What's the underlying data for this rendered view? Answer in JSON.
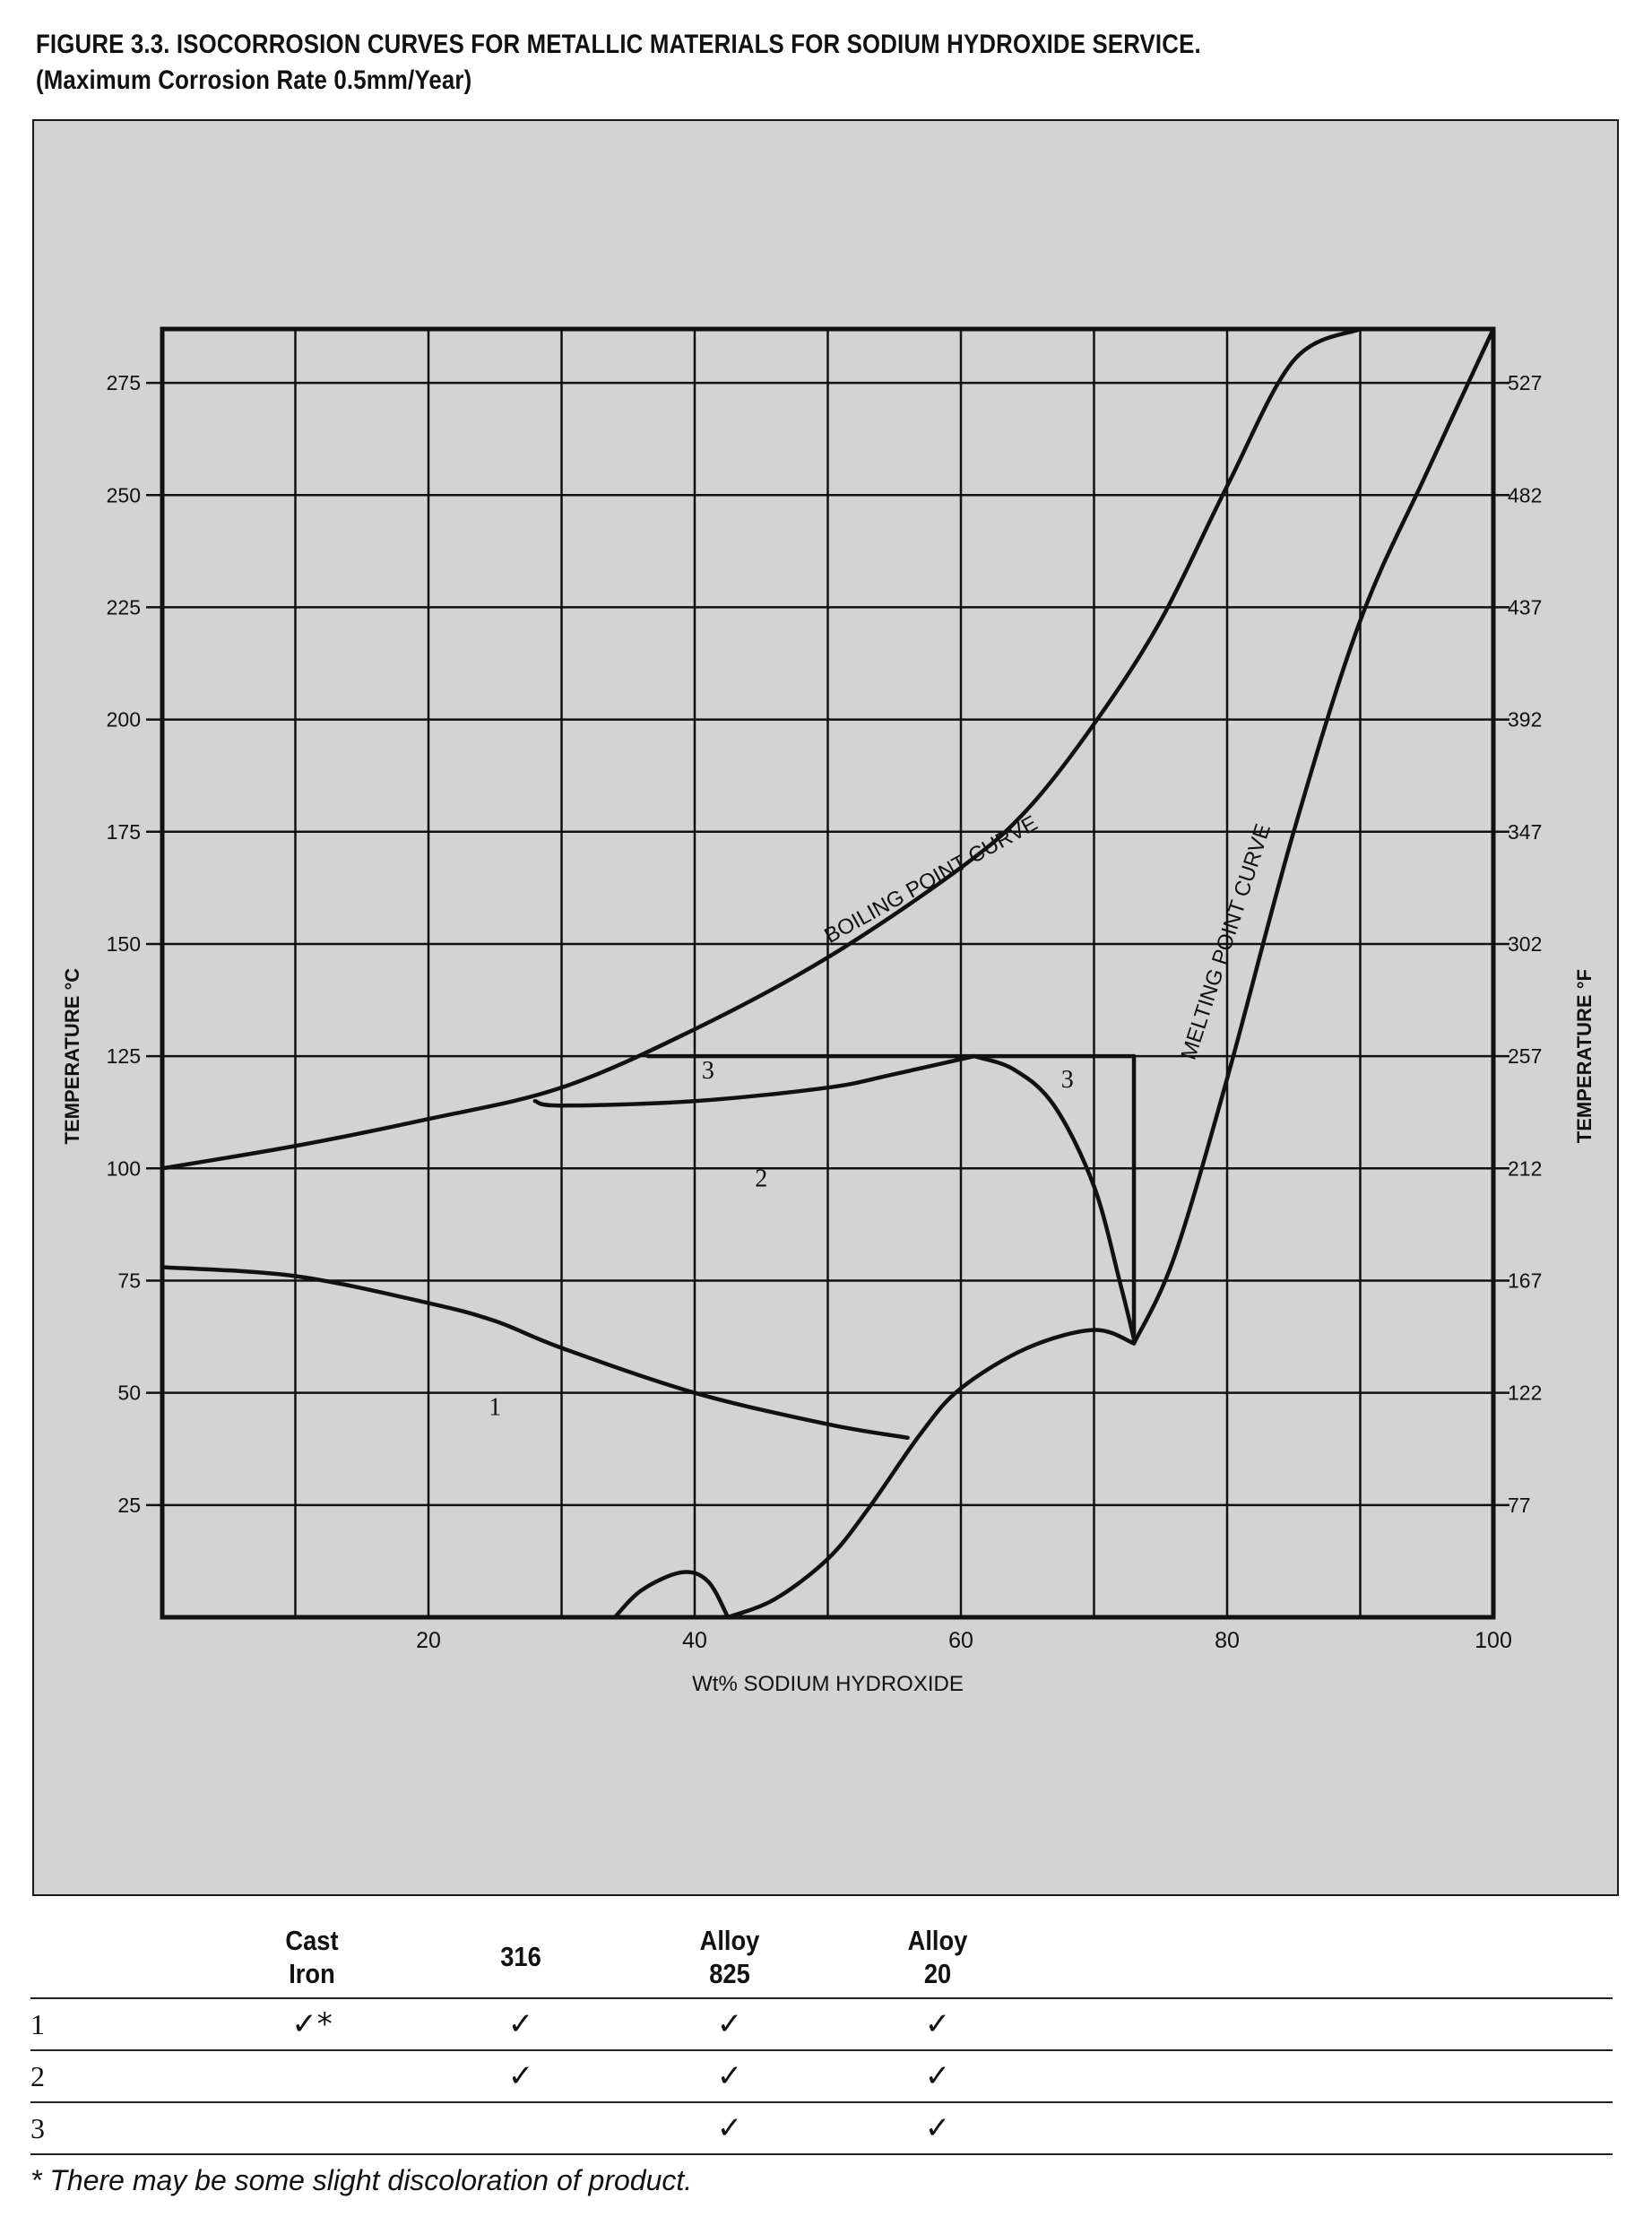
{
  "figure": {
    "title_line1": "FIGURE 3.3. ISOCORROSION CURVES FOR METALLIC MATERIALS FOR SODIUM HYDROXIDE SERVICE.",
    "title_line2": "(Maximum Corrosion Rate 0.5mm/Year)"
  },
  "chart_data": {
    "type": "line",
    "xlabel": "Wt% SODIUM HYDROXIDE",
    "ylabel_left": "TEMPERATURE °C",
    "ylabel_right": "TEMPERATURE °F",
    "xlim": [
      0,
      100
    ],
    "ylim": [
      0,
      287
    ],
    "grid": true,
    "x_ticks": [
      20,
      40,
      60,
      80,
      100
    ],
    "y_ticks_left": [
      25,
      50,
      75,
      100,
      125,
      150,
      175,
      200,
      225,
      250,
      275
    ],
    "y_ticks_right": [
      {
        "c": 25,
        "label": "77"
      },
      {
        "c": 50,
        "label": "122"
      },
      {
        "c": 75,
        "label": "167"
      },
      {
        "c": 100,
        "label": "212"
      },
      {
        "c": 125,
        "label": "257"
      },
      {
        "c": 150,
        "label": "302"
      },
      {
        "c": 175,
        "label": "347"
      },
      {
        "c": 200,
        "label": "392"
      },
      {
        "c": 225,
        "label": "437"
      },
      {
        "c": 250,
        "label": "482"
      },
      {
        "c": 275,
        "label": "527"
      }
    ],
    "series": [
      {
        "name": "BOILING POINT CURVE",
        "points": [
          [
            0,
            100
          ],
          [
            10,
            105
          ],
          [
            20,
            111
          ],
          [
            30,
            118
          ],
          [
            40,
            131
          ],
          [
            50,
            147
          ],
          [
            60,
            167
          ],
          [
            65,
            180
          ],
          [
            70,
            199
          ],
          [
            75,
            222
          ],
          [
            80,
            252
          ],
          [
            85,
            280
          ],
          [
            90,
            287
          ]
        ]
      },
      {
        "name": "MELTING POINT CURVE",
        "points": [
          [
            73,
            61
          ],
          [
            76,
            80
          ],
          [
            80,
            120
          ],
          [
            85,
            175
          ],
          [
            90,
            222
          ],
          [
            95,
            255
          ],
          [
            100,
            287
          ]
        ]
      },
      {
        "points": [
          [
            0,
            78
          ],
          [
            10,
            76
          ],
          [
            20,
            70
          ],
          [
            25,
            66
          ],
          [
            30,
            60
          ],
          [
            40,
            50
          ],
          [
            50,
            43
          ],
          [
            56,
            40
          ]
        ]
      },
      {
        "points": [
          [
            42.5,
            0
          ],
          [
            46,
            4
          ],
          [
            50,
            13
          ],
          [
            53,
            24
          ],
          [
            57,
            41
          ],
          [
            60,
            51
          ],
          [
            65,
            60
          ],
          [
            70,
            64
          ],
          [
            73,
            61
          ]
        ]
      },
      {
        "points": [
          [
            34,
            0
          ],
          [
            36,
            6
          ],
          [
            39,
            10
          ],
          [
            41,
            8
          ],
          [
            42.5,
            0
          ]
        ]
      },
      {
        "points": [
          [
            28,
            115
          ],
          [
            30,
            114
          ],
          [
            40,
            115
          ],
          [
            50,
            118
          ],
          [
            55,
            121
          ],
          [
            61,
            125
          ]
        ]
      },
      {
        "points": [
          [
            61,
            125
          ],
          [
            64,
            122
          ],
          [
            67,
            114
          ],
          [
            70,
            96
          ],
          [
            72,
            74
          ],
          [
            73,
            62
          ]
        ]
      },
      {
        "points": [
          [
            36.5,
            125
          ],
          [
            73,
            125
          ],
          [
            73,
            61
          ]
        ]
      }
    ],
    "annotations": [
      {
        "text": "BOILING POINT CURVE",
        "x": 52,
        "y": 150
      },
      {
        "text": "MELTING POINT CURVE",
        "x": 81,
        "y": 152
      },
      {
        "text": "1",
        "x": 25,
        "y": 45
      },
      {
        "text": "2",
        "x": 45,
        "y": 96
      },
      {
        "text": "3",
        "x": 41,
        "y": 120
      },
      {
        "text": "3",
        "x": 68,
        "y": 118
      }
    ]
  },
  "table": {
    "headers": [
      {
        "line1": "Cast",
        "line2": "Iron"
      },
      {
        "line1": "316",
        "line2": ""
      },
      {
        "line1": "Alloy",
        "line2": "825"
      },
      {
        "line1": "Alloy",
        "line2": "20"
      }
    ],
    "rows": [
      {
        "num": "1",
        "cells": [
          "✓*",
          "✓",
          "✓",
          "✓"
        ]
      },
      {
        "num": "2",
        "cells": [
          "",
          "✓",
          "✓",
          "✓"
        ]
      },
      {
        "num": "3",
        "cells": [
          "",
          "",
          "✓",
          "✓"
        ]
      }
    ],
    "footnote": "* There may be some slight discoloration of product."
  }
}
